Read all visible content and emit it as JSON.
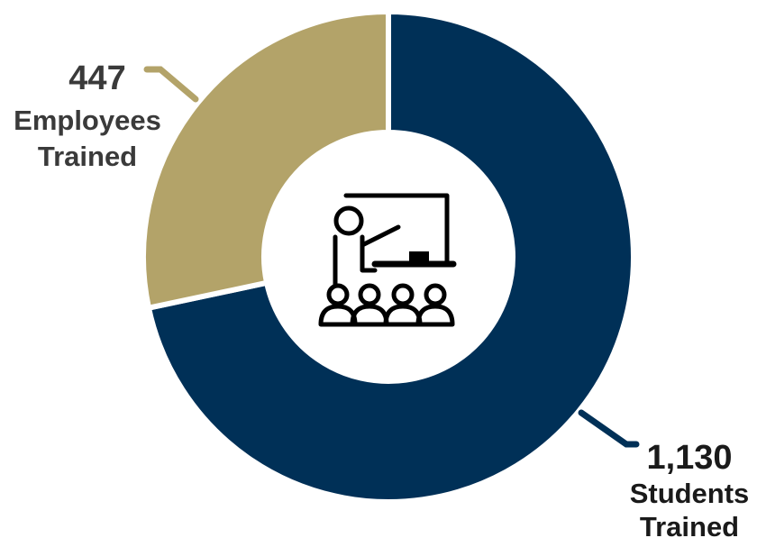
{
  "chart_data": {
    "type": "pie",
    "variant": "donut",
    "title": "",
    "slices": [
      {
        "value_label": "1,130",
        "value": 1130,
        "label_lines": [
          "Students",
          "Trained"
        ],
        "color": "#003057"
      },
      {
        "value_label": "447",
        "value": 447,
        "label_lines": [
          "Employees",
          "Trained"
        ],
        "color": "#B3A369"
      }
    ],
    "legend": "none",
    "start_angle_deg": 0,
    "direction": "clockwise",
    "separator_color": "#ffffff",
    "center_icon": "teacher-at-whiteboard-icon"
  }
}
